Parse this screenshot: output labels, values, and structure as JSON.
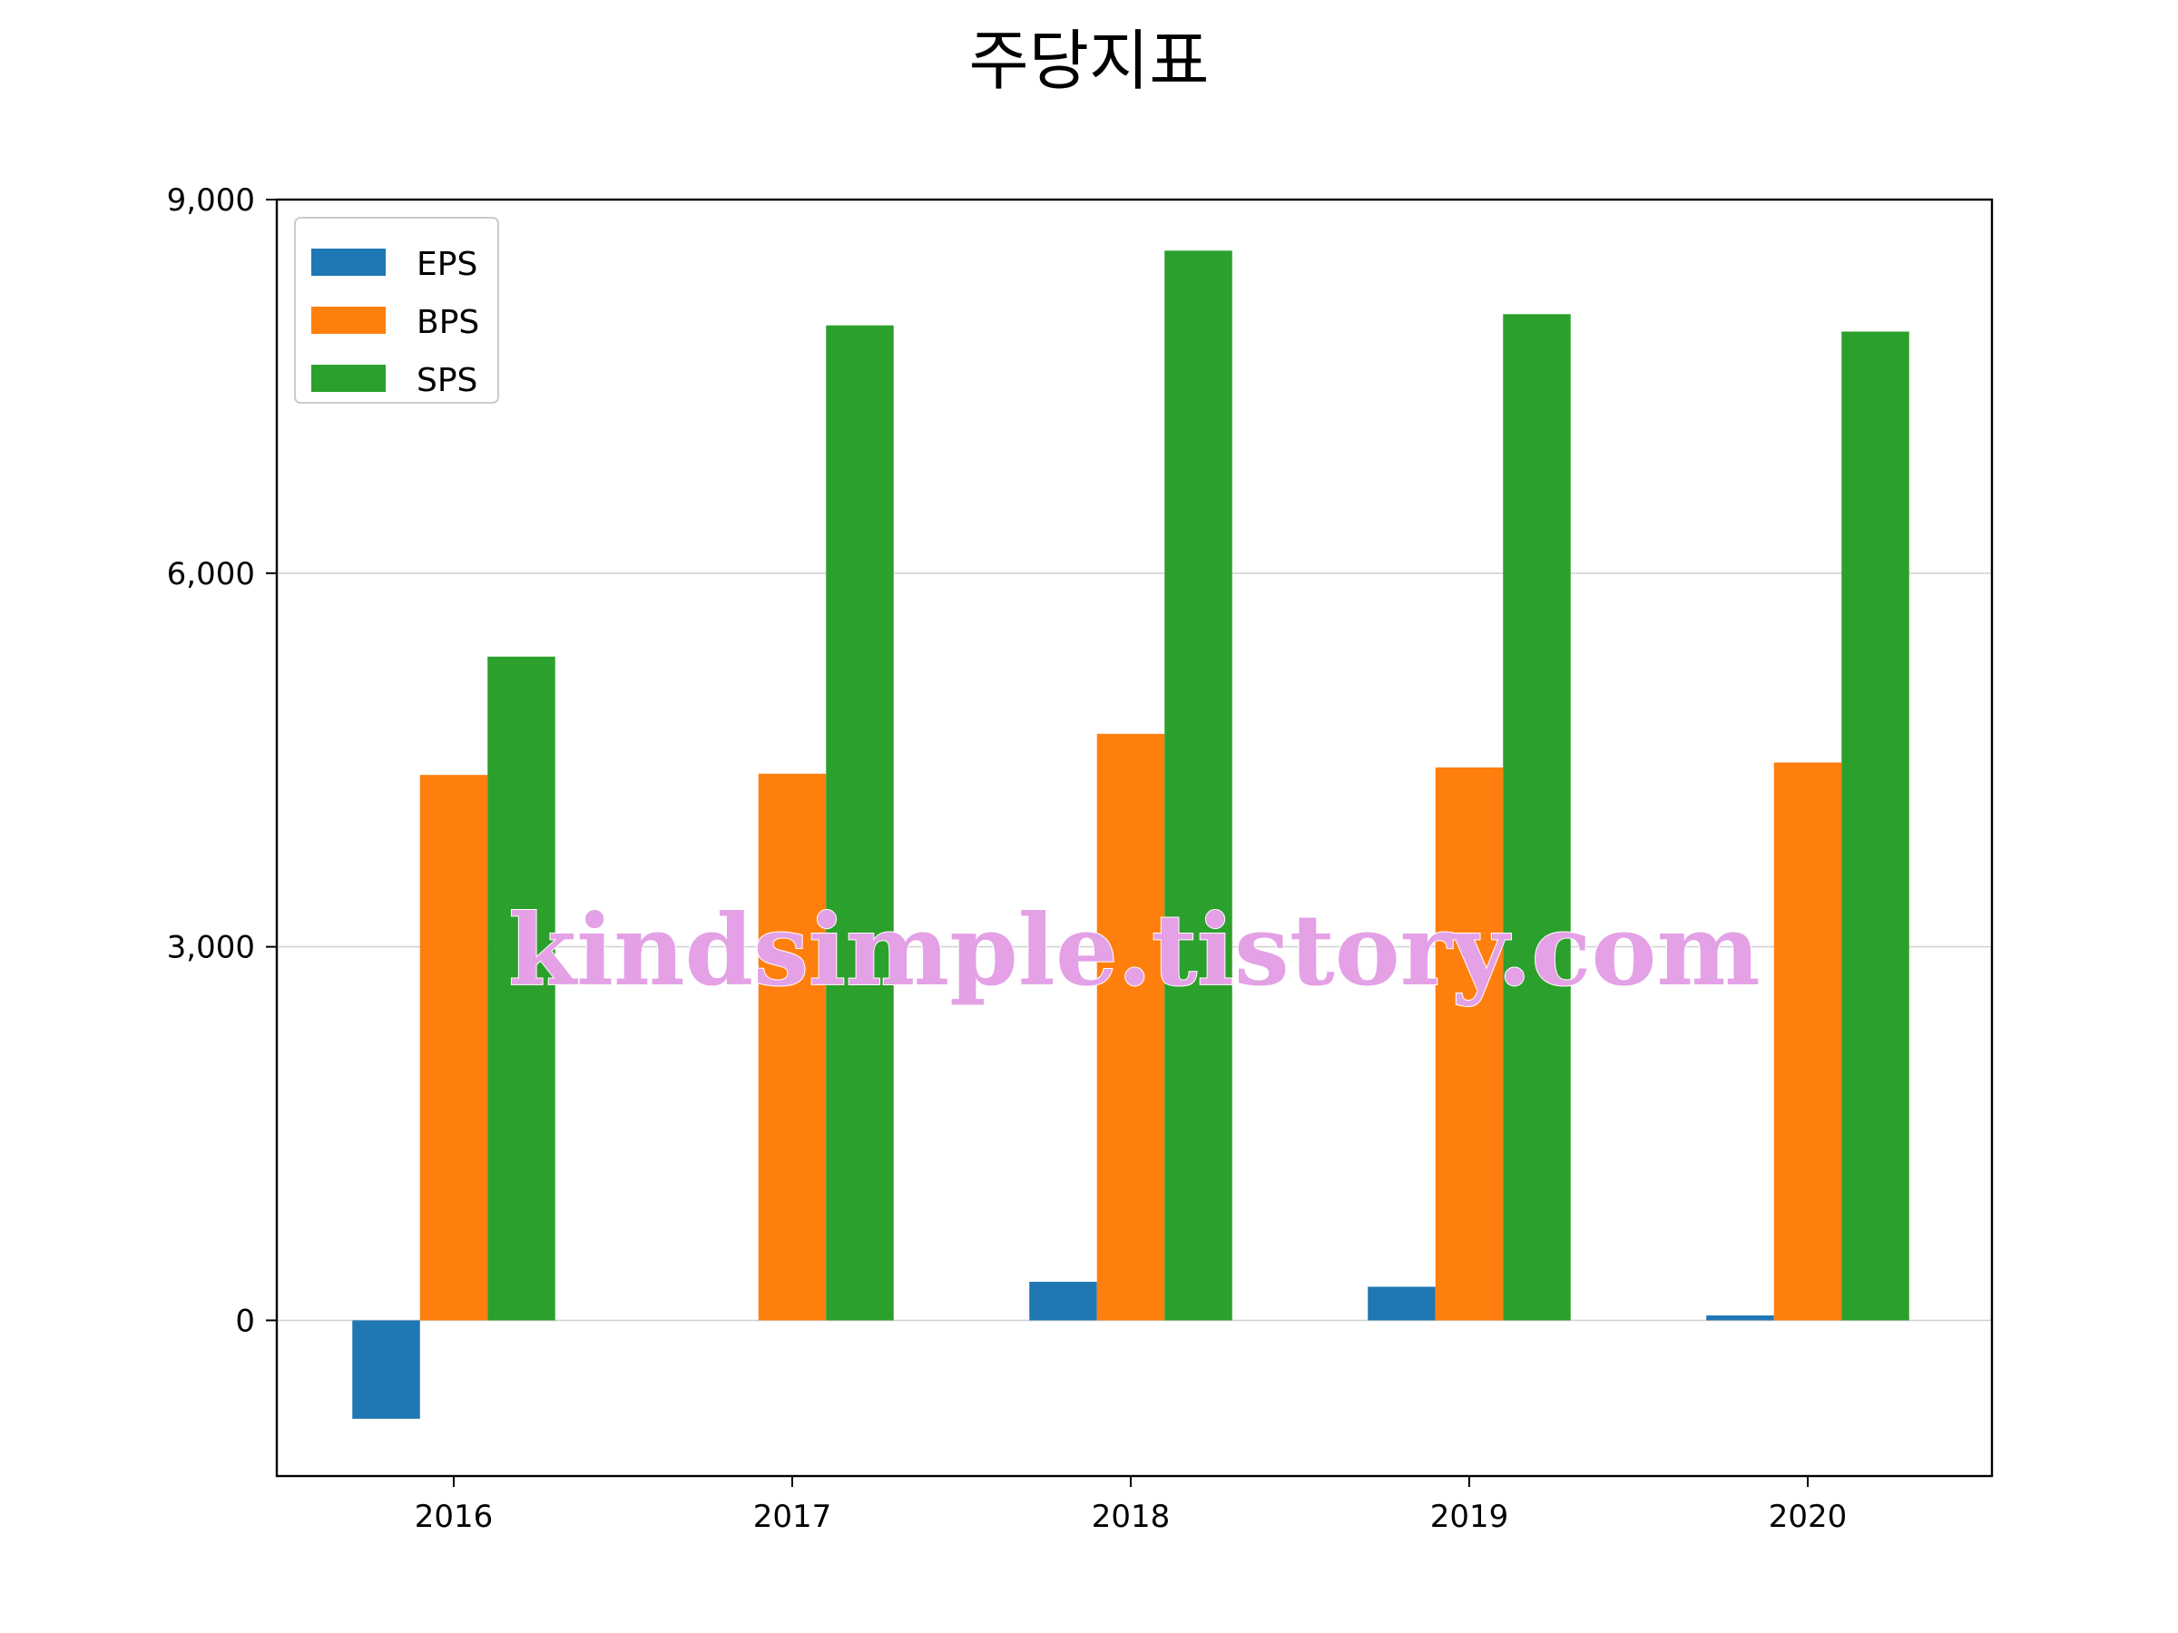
{
  "chart_data": {
    "type": "bar",
    "title": "주당지표",
    "xlabel": "",
    "ylabel": "",
    "categories": [
      "2016",
      "2017",
      "2018",
      "2019",
      "2020"
    ],
    "series": [
      {
        "name": "EPS",
        "color": "#1f77b4",
        "values": [
          -790,
          0,
          310,
          270,
          40
        ]
      },
      {
        "name": "BPS",
        "color": "#ff7f0e",
        "values": [
          4380,
          4390,
          4710,
          4440,
          4480
        ]
      },
      {
        "name": "SPS",
        "color": "#2ca02c",
        "values": [
          5330,
          7990,
          8590,
          8080,
          7940
        ]
      }
    ],
    "ylim": [
      -1250,
      9000
    ],
    "yticks": [
      0,
      3000,
      6000,
      9000
    ],
    "ytick_labels": [
      "0",
      "3,000",
      "6,000",
      "9,000"
    ],
    "grid": "horizontal",
    "legend_position": "top-left",
    "watermark": "kindsimple.tistory.com"
  }
}
